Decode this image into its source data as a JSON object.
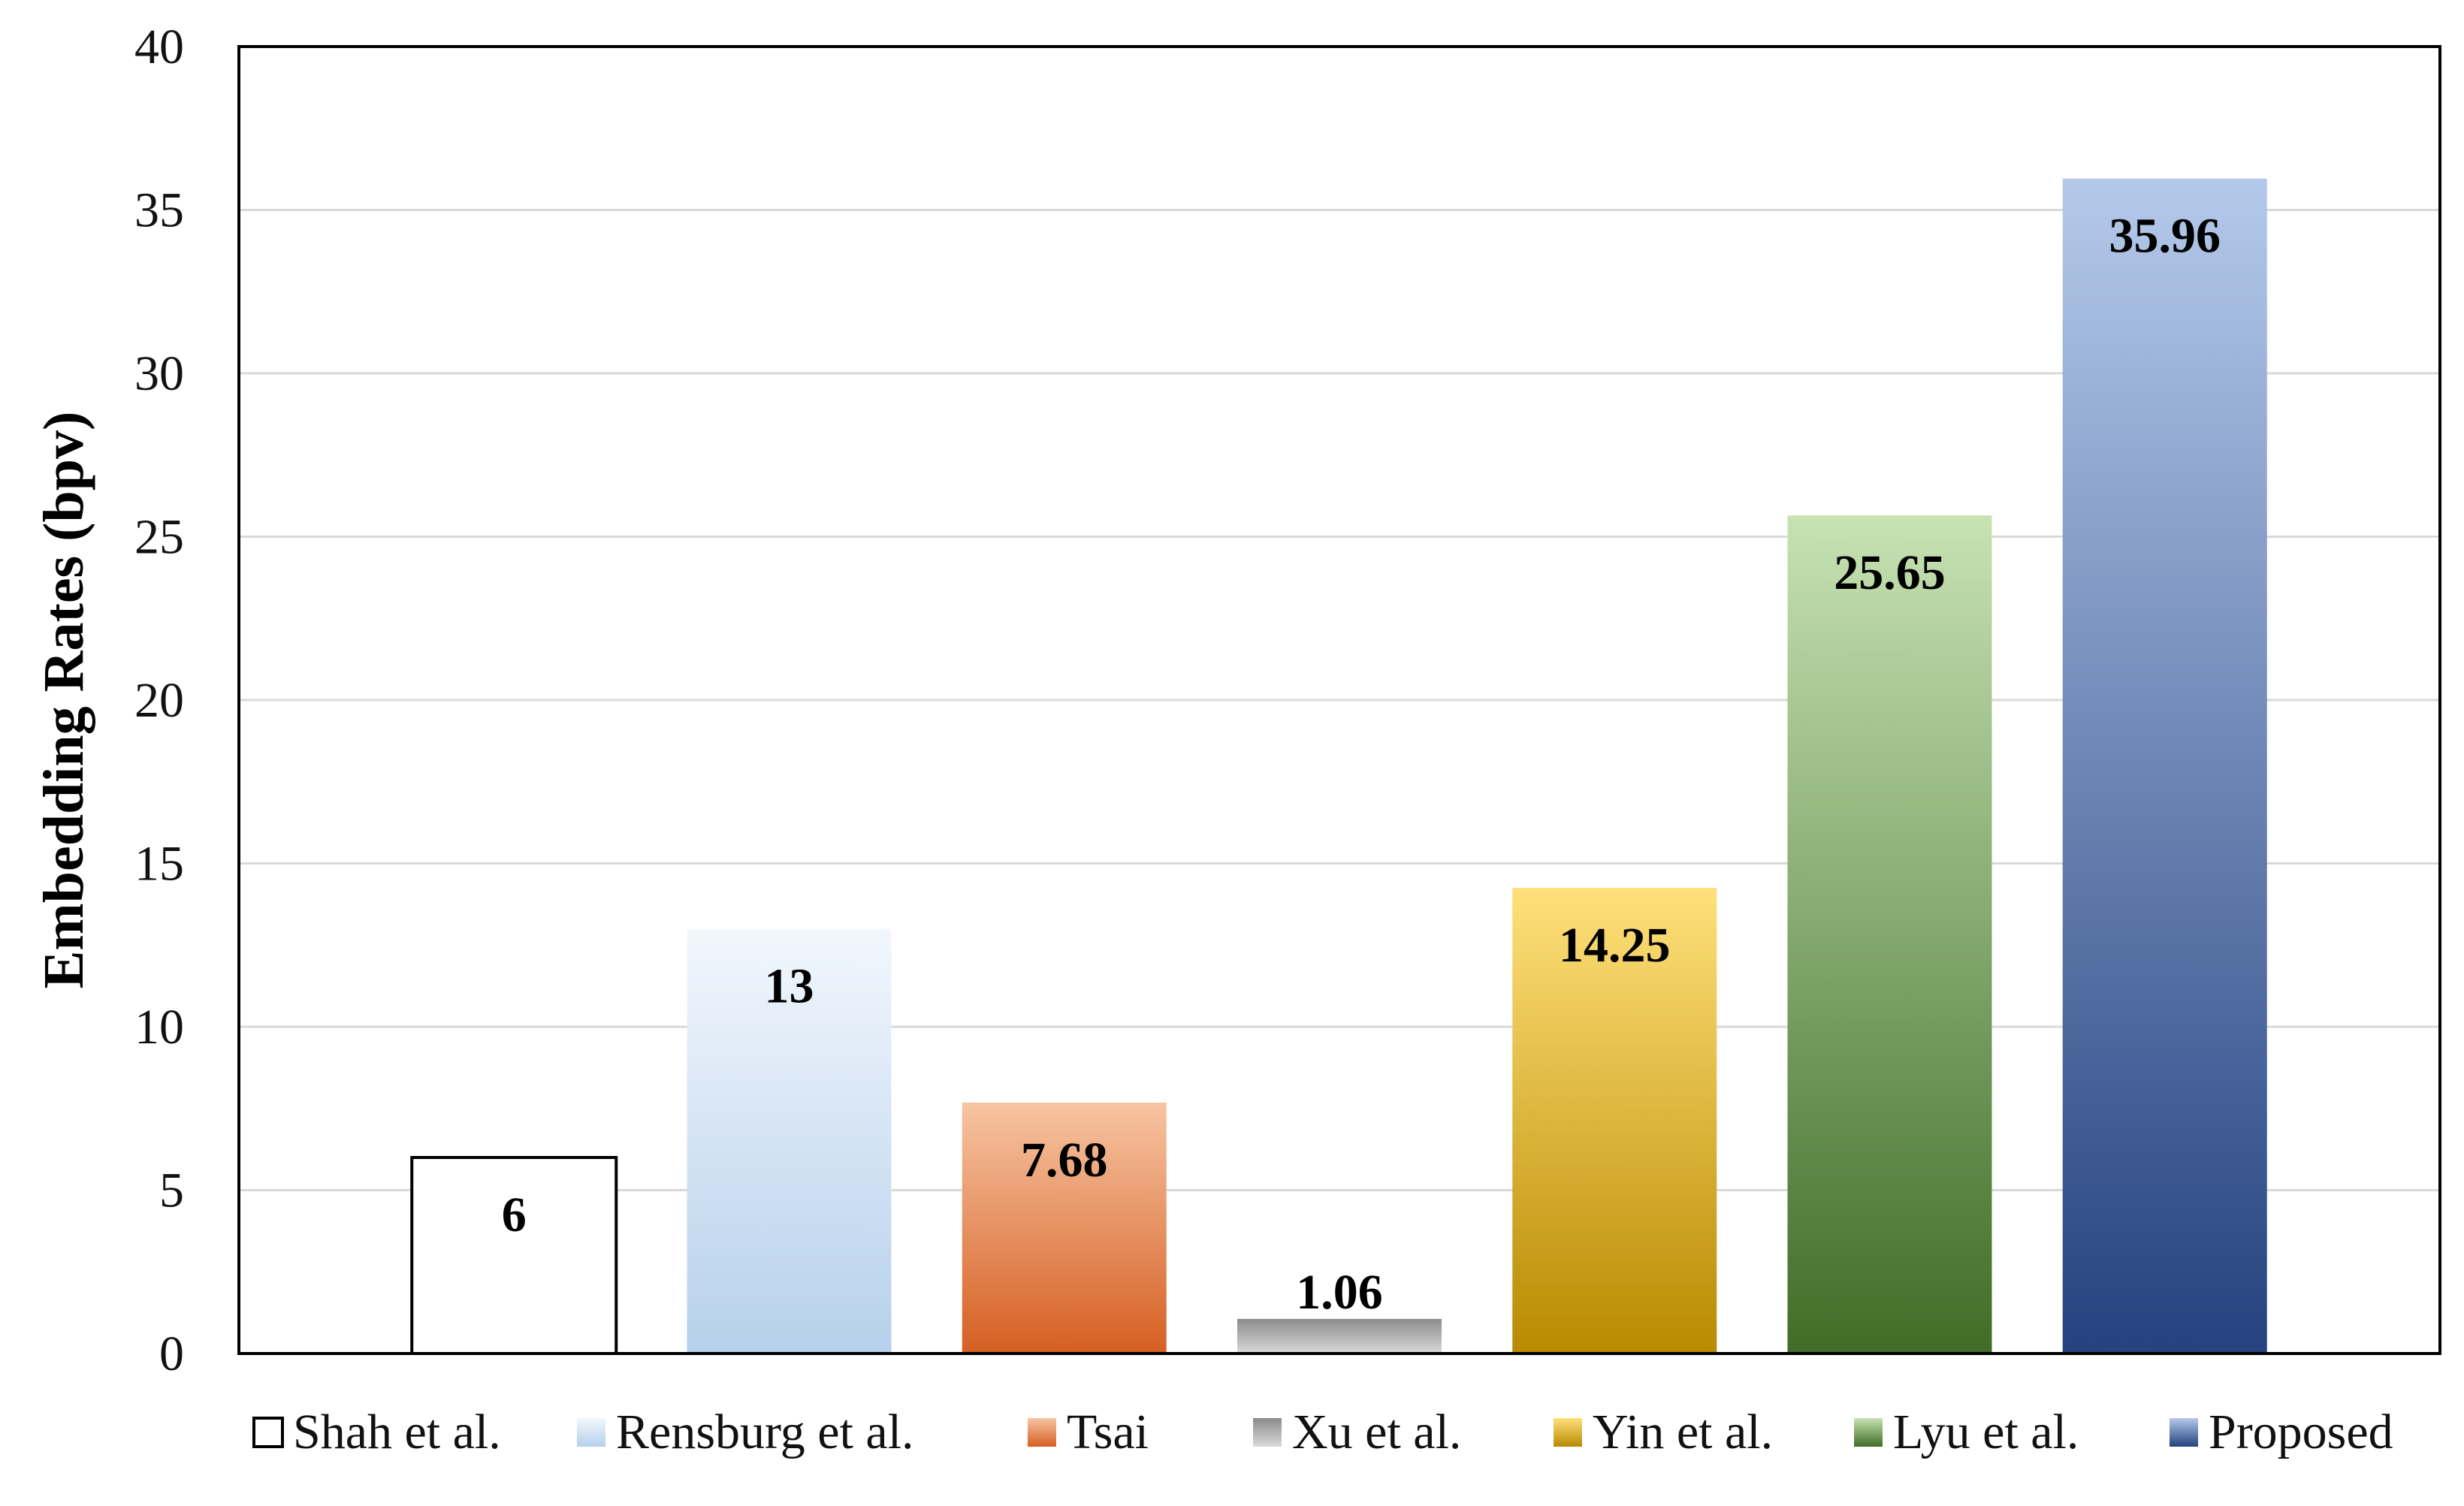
{
  "chart_data": {
    "type": "bar",
    "ylabel": "Embedding Rates (bpv)",
    "ylim": [
      0,
      40
    ],
    "yticks": [
      0,
      5,
      10,
      15,
      20,
      25,
      30,
      35,
      40
    ],
    "grid": true,
    "legend": "bottom",
    "categories": [
      "Shah et al.",
      "Rensburg et al.",
      "Tsai",
      "Xu et al.",
      "Yin et al.",
      "Lyu et al.",
      "Proposed"
    ],
    "values": [
      6,
      13,
      7.68,
      1.06,
      14.25,
      25.65,
      35.96
    ],
    "data_labels": [
      "6",
      "13",
      "7.68",
      "1.06",
      "14.25",
      "25.65",
      "35.96"
    ],
    "colors": [
      [
        "#ffffff",
        "#ffffff"
      ],
      [
        "#f2f7fd",
        "#b6d0eb"
      ],
      [
        "#f7c4a2",
        "#d55f22"
      ],
      [
        "#8c8c8c",
        "#d9d9d9"
      ],
      [
        "#ffe07a",
        "#b88a00"
      ],
      [
        "#c7e2b3",
        "#3f6d27"
      ],
      [
        "#b4c9ea",
        "#25427f"
      ]
    ]
  }
}
